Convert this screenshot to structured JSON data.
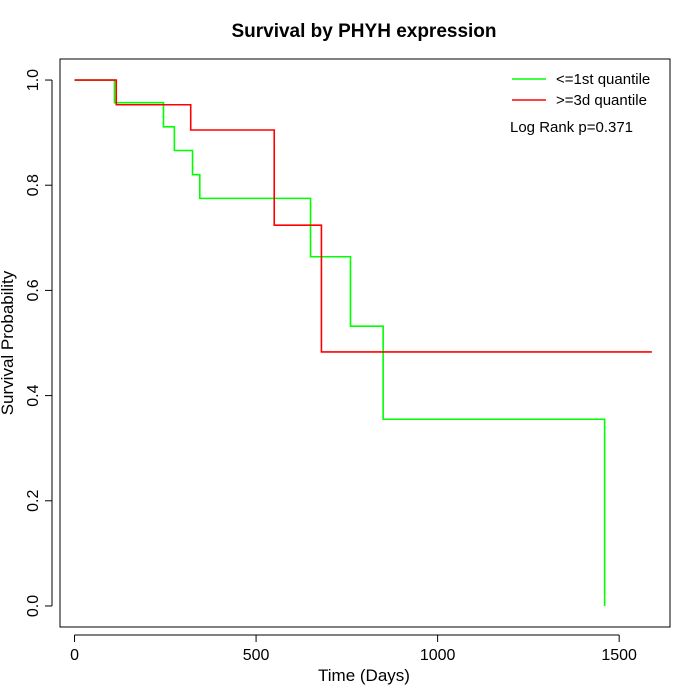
{
  "chart_data": {
    "type": "line",
    "step": true,
    "title": "Survival by PHYH expression",
    "xlabel": "Time (Days)",
    "ylabel": "Survival Probability",
    "xlim": [
      -40,
      1640
    ],
    "ylim": [
      -0.04,
      1.04
    ],
    "xticks": [
      0,
      500,
      1000,
      1500
    ],
    "xtick_labels": [
      "0",
      "500",
      "1000",
      "1500"
    ],
    "yticks": [
      0.0,
      0.2,
      0.4,
      0.6,
      0.8,
      1.0
    ],
    "ytick_labels": [
      "0.0",
      "0.2",
      "0.4",
      "0.6",
      "0.8",
      "1.0"
    ],
    "grid": false,
    "legend_position": "top-right",
    "annotation": "Log Rank p=0.371",
    "series": [
      {
        "name": "<=1st quantile",
        "color": "#00ff00",
        "x": [
          0,
          110,
          245,
          275,
          325,
          345,
          650,
          760,
          850,
          1460,
          1460
        ],
        "y": [
          1.0,
          0.957,
          0.911,
          0.866,
          0.82,
          0.775,
          0.664,
          0.532,
          0.355,
          0.355,
          0.0
        ]
      },
      {
        "name": ">=3d quantile",
        "color": "#ff0000",
        "x": [
          0,
          115,
          320,
          550,
          680,
          1590
        ],
        "y": [
          1.0,
          0.953,
          0.905,
          0.724,
          0.483,
          0.483
        ]
      }
    ]
  }
}
